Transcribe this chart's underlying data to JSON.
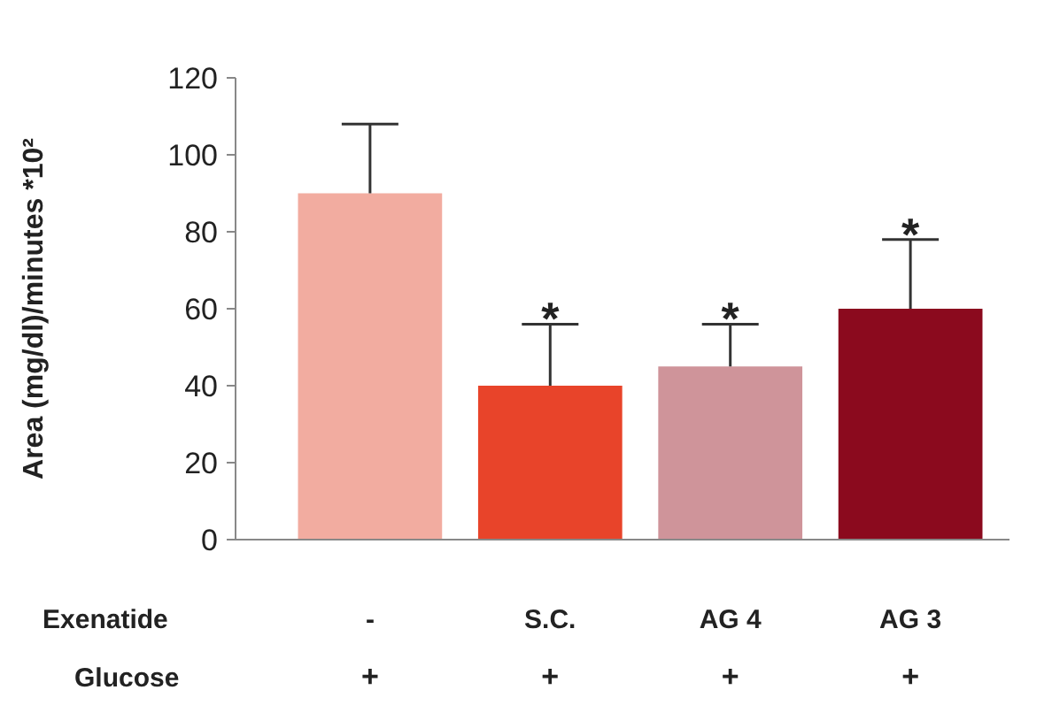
{
  "chart_data": {
    "type": "bar",
    "ylabel": "Area (mg/dl)/minutes *10²",
    "categories": [
      "-",
      "S.C.",
      "AG 4",
      "AG 3"
    ],
    "values": [
      90,
      40,
      45,
      60
    ],
    "colors": [
      "#f2aca0",
      "#e8442a",
      "#cf949a",
      "#8b0a1e"
    ],
    "errors": [
      [
        90,
        108
      ],
      [
        40,
        56
      ],
      [
        45,
        56
      ],
      [
        60,
        78
      ]
    ],
    "ylim": [
      0,
      120
    ],
    "yticks": [
      0,
      20,
      40,
      60,
      80,
      100,
      120
    ],
    "grid": false,
    "annotations": [
      {
        "text": "*",
        "x": "S.C.",
        "y": 56
      },
      {
        "text": "*",
        "x": "AG 4",
        "y": 56
      },
      {
        "text": "*",
        "x": "AG 3",
        "y": 78
      },
      "Exenatide",
      "Glucose",
      "+",
      "+",
      "+",
      "+"
    ]
  }
}
